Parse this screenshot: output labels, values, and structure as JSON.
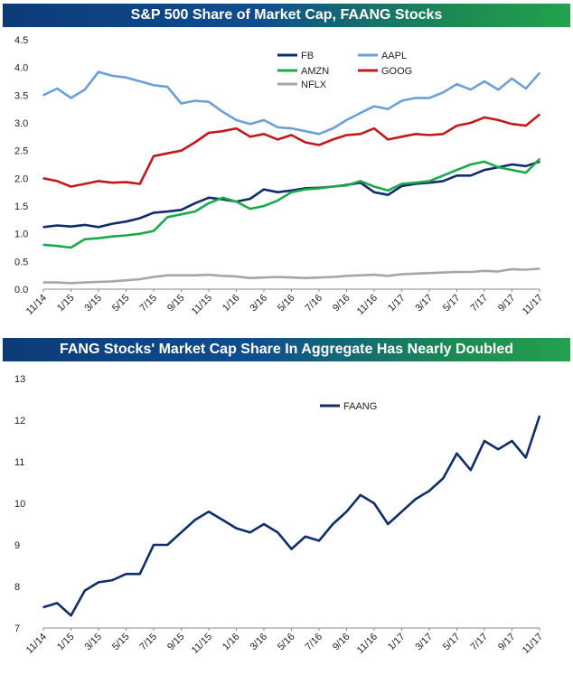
{
  "chart_data": [
    {
      "type": "line",
      "title": "S&P 500 Share of Market Cap, FAANG Stocks",
      "xlabel": "",
      "ylabel": "",
      "ylim": [
        0,
        4.5
      ],
      "yticks": [
        "0.0",
        "0.5",
        "1.0",
        "1.5",
        "2.0",
        "2.5",
        "3.0",
        "3.5",
        "4.0",
        "4.5"
      ],
      "xticks": [
        "11/14",
        "1/15",
        "3/15",
        "5/15",
        "7/15",
        "9/15",
        "11/15",
        "1/16",
        "3/16",
        "5/16",
        "7/16",
        "9/16",
        "11/16",
        "1/17",
        "3/17",
        "5/17",
        "7/17",
        "9/17",
        "11/17"
      ],
      "x": [
        "11/14",
        "12/14",
        "1/15",
        "2/15",
        "3/15",
        "4/15",
        "5/15",
        "6/15",
        "7/15",
        "8/15",
        "9/15",
        "10/15",
        "11/15",
        "12/15",
        "1/16",
        "2/16",
        "3/16",
        "4/16",
        "5/16",
        "6/16",
        "7/16",
        "8/16",
        "9/16",
        "10/16",
        "11/16",
        "12/16",
        "1/17",
        "2/17",
        "3/17",
        "4/17",
        "5/17",
        "6/17",
        "7/17",
        "8/17",
        "9/17",
        "10/17",
        "11/17"
      ],
      "legend_position": "top",
      "grid": false,
      "series": [
        {
          "name": "FB",
          "color": "#0f2d6b",
          "values": [
            1.12,
            1.15,
            1.13,
            1.16,
            1.12,
            1.18,
            1.22,
            1.28,
            1.38,
            1.4,
            1.43,
            1.55,
            1.65,
            1.62,
            1.58,
            1.63,
            1.8,
            1.75,
            1.78,
            1.82,
            1.83,
            1.85,
            1.88,
            1.92,
            1.75,
            1.7,
            1.86,
            1.9,
            1.92,
            1.95,
            2.05,
            2.05,
            2.15,
            2.2,
            2.25,
            2.22,
            2.3
          ]
        },
        {
          "name": "AAPL",
          "color": "#6aa0d8",
          "values": [
            3.5,
            3.62,
            3.45,
            3.6,
            3.92,
            3.85,
            3.82,
            3.75,
            3.68,
            3.65,
            3.35,
            3.4,
            3.38,
            3.2,
            3.05,
            2.98,
            3.05,
            2.92,
            2.9,
            2.85,
            2.8,
            2.9,
            3.05,
            3.18,
            3.3,
            3.25,
            3.4,
            3.45,
            3.45,
            3.55,
            3.7,
            3.6,
            3.75,
            3.6,
            3.8,
            3.62,
            3.9
          ]
        },
        {
          "name": "AMZN",
          "color": "#1aaa4a",
          "values": [
            0.8,
            0.78,
            0.75,
            0.9,
            0.92,
            0.95,
            0.97,
            1.0,
            1.05,
            1.3,
            1.35,
            1.4,
            1.55,
            1.65,
            1.58,
            1.45,
            1.5,
            1.6,
            1.75,
            1.8,
            1.82,
            1.85,
            1.87,
            1.95,
            1.85,
            1.78,
            1.9,
            1.92,
            1.95,
            2.05,
            2.15,
            2.25,
            2.3,
            2.2,
            2.15,
            2.1,
            2.35
          ]
        },
        {
          "name": "GOOG",
          "color": "#c0191e",
          "values": [
            2.0,
            1.95,
            1.85,
            1.9,
            1.95,
            1.92,
            1.93,
            1.9,
            2.4,
            2.45,
            2.5,
            2.65,
            2.82,
            2.85,
            2.9,
            2.75,
            2.8,
            2.7,
            2.78,
            2.65,
            2.6,
            2.7,
            2.78,
            2.8,
            2.9,
            2.7,
            2.75,
            2.8,
            2.78,
            2.8,
            2.95,
            3.0,
            3.1,
            3.05,
            2.98,
            2.95,
            3.15
          ]
        },
        {
          "name": "NFLX",
          "color": "#a6a6a6",
          "values": [
            0.12,
            0.12,
            0.11,
            0.12,
            0.13,
            0.14,
            0.16,
            0.18,
            0.22,
            0.25,
            0.25,
            0.25,
            0.26,
            0.24,
            0.23,
            0.2,
            0.21,
            0.22,
            0.21,
            0.2,
            0.21,
            0.22,
            0.24,
            0.25,
            0.26,
            0.24,
            0.27,
            0.28,
            0.29,
            0.3,
            0.31,
            0.31,
            0.33,
            0.32,
            0.36,
            0.35,
            0.37
          ]
        }
      ]
    },
    {
      "type": "line",
      "title": "FANG Stocks' Market Cap Share In Aggregate Has Nearly Doubled",
      "xlabel": "",
      "ylabel": "",
      "ylim": [
        7,
        13
      ],
      "yticks": [
        "7",
        "8",
        "9",
        "10",
        "11",
        "12",
        "13"
      ],
      "xticks": [
        "11/14",
        "1/15",
        "3/15",
        "5/15",
        "7/15",
        "9/15",
        "11/15",
        "1/16",
        "3/16",
        "5/16",
        "7/16",
        "9/16",
        "11/16",
        "1/17",
        "3/17",
        "5/17",
        "7/17",
        "9/17",
        "11/17"
      ],
      "x": [
        "11/14",
        "12/14",
        "1/15",
        "2/15",
        "3/15",
        "4/15",
        "5/15",
        "6/15",
        "7/15",
        "8/15",
        "9/15",
        "10/15",
        "11/15",
        "12/15",
        "1/16",
        "2/16",
        "3/16",
        "4/16",
        "5/16",
        "6/16",
        "7/16",
        "8/16",
        "9/16",
        "10/16",
        "11/16",
        "12/16",
        "1/17",
        "2/17",
        "3/17",
        "4/17",
        "5/17",
        "6/17",
        "7/17",
        "8/17",
        "9/17",
        "10/17",
        "11/17"
      ],
      "legend_position": "top",
      "grid": false,
      "series": [
        {
          "name": "FAANG",
          "color": "#0f2d6b",
          "values": [
            7.5,
            7.6,
            7.3,
            7.9,
            8.1,
            8.15,
            8.3,
            8.3,
            9.0,
            9.0,
            9.3,
            9.6,
            9.8,
            9.6,
            9.4,
            9.3,
            9.5,
            9.3,
            8.9,
            9.2,
            9.1,
            9.5,
            9.8,
            10.2,
            10.0,
            9.5,
            9.8,
            10.1,
            10.3,
            10.6,
            11.2,
            10.8,
            11.5,
            11.3,
            11.5,
            11.1,
            12.1
          ]
        }
      ]
    }
  ]
}
